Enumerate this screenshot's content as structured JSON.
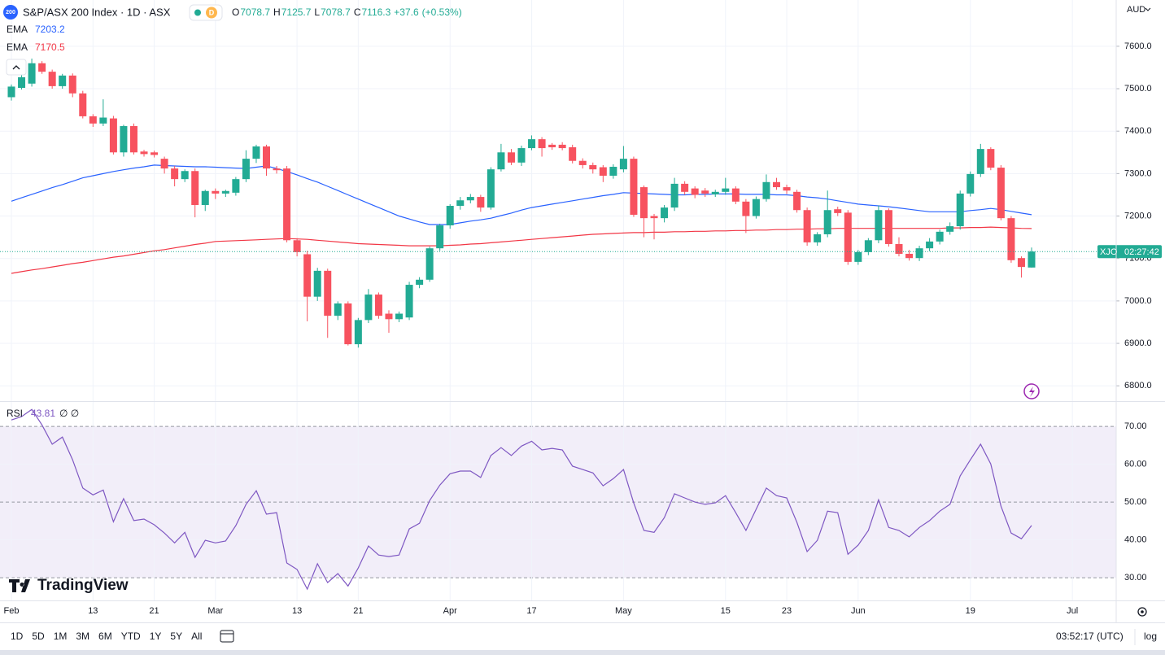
{
  "header": {
    "badge": "200",
    "interval_badge": "D",
    "ohlc_labels": [
      "O",
      "H",
      "L",
      "C"
    ],
    "change": "+37.6",
    "change_pct": "(+0.53%)",
    "currency": "AUD",
    "symbol": "XJO",
    "countdown": "02:27:42",
    "logo": "TradingView"
  },
  "toolbar": {
    "ranges": [
      "1D",
      "5D",
      "1M",
      "3M",
      "6M",
      "YTD",
      "1Y",
      "5Y",
      "All"
    ],
    "time": "03:52:17 (UTC)",
    "log": "log"
  },
  "chart_data": {
    "type": "candlestick",
    "title": "S&P/ASX 200 Index · 1D · ASX",
    "up_color": "#22ab94",
    "down_color": "#f7525f",
    "grid": true,
    "categories": [
      "Feb",
      null,
      null,
      null,
      null,
      null,
      null,
      null,
      "13",
      null,
      null,
      null,
      null,
      null,
      "21",
      null,
      null,
      null,
      null,
      null,
      "Mar",
      null,
      null,
      null,
      null,
      null,
      null,
      null,
      "13",
      null,
      null,
      null,
      null,
      null,
      "21",
      null,
      null,
      null,
      null,
      null,
      null,
      null,
      null,
      "Apr",
      null,
      null,
      null,
      null,
      null,
      null,
      null,
      "17",
      null,
      null,
      null,
      null,
      null,
      null,
      null,
      null,
      "May",
      null,
      null,
      null,
      null,
      null,
      null,
      null,
      null,
      null,
      "15",
      null,
      null,
      null,
      null,
      null,
      "23",
      null,
      null,
      null,
      null,
      null,
      null,
      "Jun",
      null,
      null,
      null,
      null,
      null,
      null,
      null,
      null,
      null,
      null,
      "19",
      null,
      null,
      null,
      null,
      null,
      null,
      null,
      null,
      null,
      "Jul"
    ],
    "open": [
      7480,
      7502,
      7512,
      7560,
      7540,
      7506,
      7531,
      7489,
      7435,
      7418,
      7430,
      7350,
      7412,
      7352,
      7350,
      7335,
      7312,
      7287,
      7306,
      7226,
      7259,
      7253,
      7255,
      7287,
      7335,
      7364,
      7312,
      7312,
      7143,
      7110,
      7010,
      7071,
      6965,
      6994,
      6898,
      6955,
      7015,
      6970,
      6957,
      6961,
      7038,
      7050,
      7124,
      7178,
      7224,
      7237,
      7245,
      7220,
      7310,
      7350,
      7326,
      7360,
      7381,
      7368,
      7368,
      7362,
      7330,
      7320,
      7315,
      7295,
      7310,
      7335,
      7268,
      7200,
      7195,
      7220,
      7276,
      7265,
      7260,
      7251,
      7257,
      7265,
      7234,
      7200,
      7240,
      7280,
      7268,
      7257,
      7214,
      7138,
      7157,
      7216,
      7208,
      7092,
      7115,
      7143,
      7214,
      7134,
      7111,
      7101,
      7124,
      7140,
      7163,
      7176,
      7253,
      7299,
      7358,
      7314,
      7195,
      7101,
      7078.7,
      null,
      null,
      null,
      null
    ],
    "high": [
      7510,
      7535,
      7571,
      7565,
      7545,
      7535,
      7536,
      7495,
      7440,
      7475,
      7436,
      7415,
      7418,
      7356,
      7354,
      7340,
      7318,
      7310,
      7312,
      7262,
      7265,
      7262,
      7292,
      7355,
      7368,
      7368,
      7318,
      7318,
      7148,
      7118,
      7078,
      7076,
      6999,
      6999,
      6960,
      7028,
      7020,
      6978,
      6975,
      7045,
      7056,
      7128,
      7182,
      7228,
      7245,
      7252,
      7250,
      7315,
      7370,
      7358,
      7366,
      7390,
      7386,
      7372,
      7374,
      7368,
      7336,
      7326,
      7320,
      7322,
      7365,
      7340,
      7272,
      7205,
      7226,
      7290,
      7282,
      7270,
      7266,
      7262,
      7290,
      7270,
      7240,
      7246,
      7298,
      7290,
      7274,
      7262,
      7220,
      7162,
      7260,
      7222,
      7214,
      7120,
      7148,
      7225,
      7218,
      7150,
      7120,
      7130,
      7148,
      7168,
      7185,
      7260,
      7305,
      7370,
      7362,
      7320,
      7200,
      7105,
      7125.7,
      null,
      null,
      null,
      null
    ],
    "low": [
      7472,
      7498,
      7505,
      7535,
      7500,
      7500,
      7480,
      7430,
      7410,
      7412,
      7345,
      7340,
      7345,
      7340,
      7338,
      7300,
      7270,
      7280,
      7197,
      7212,
      7240,
      7245,
      7248,
      7280,
      7325,
      7295,
      7300,
      7138,
      7105,
      6952,
      7000,
      6913,
      6955,
      6895,
      6890,
      6948,
      6958,
      6925,
      6950,
      6955,
      7030,
      7045,
      7118,
      7170,
      7215,
      7230,
      7210,
      7215,
      7305,
      7320,
      7318,
      7355,
      7340,
      7356,
      7355,
      7324,
      7312,
      7300,
      7280,
      7288,
      7303,
      7198,
      7150,
      7145,
      7185,
      7212,
      7250,
      7242,
      7245,
      7245,
      7250,
      7228,
      7160,
      7194,
      7234,
      7262,
      7252,
      7208,
      7130,
      7130,
      7150,
      7200,
      7085,
      7085,
      7108,
      7136,
      7128,
      7105,
      7095,
      7094,
      7117,
      7133,
      7156,
      7168,
      7246,
      7292,
      7308,
      7190,
      7090,
      7055,
      7078.7,
      null,
      null,
      null,
      null
    ],
    "close": [
      7505,
      7527,
      7560,
      7540,
      7506,
      7531,
      7489,
      7435,
      7418,
      7432,
      7350,
      7412,
      7350,
      7346,
      7344,
      7312,
      7287,
      7306,
      7226,
      7259,
      7253,
      7259,
      7287,
      7335,
      7364,
      7312,
      7308,
      7143,
      7115,
      7010,
      7071,
      6965,
      6994,
      6898,
      6955,
      7015,
      6965,
      6957,
      6970,
      7038,
      7050,
      7124,
      7178,
      7224,
      7237,
      7245,
      7220,
      7310,
      7350,
      7326,
      7360,
      7381,
      7360,
      7362,
      7360,
      7330,
      7320,
      7310,
      7295,
      7316,
      7335,
      7203,
      7195,
      7195,
      7220,
      7276,
      7257,
      7250,
      7253,
      7257,
      7265,
      7234,
      7200,
      7240,
      7280,
      7268,
      7260,
      7214,
      7138,
      7157,
      7214,
      7207,
      7092,
      7115,
      7143,
      7214,
      7134,
      7111,
      7101,
      7124,
      7140,
      7163,
      7176,
      7253,
      7299,
      7358,
      7314,
      7195,
      7096,
      7080,
      7116.3,
      null,
      null,
      null,
      null
    ],
    "series": [
      {
        "name": "EMA",
        "color": "#2962ff",
        "values": [
          7235,
          7243,
          7251,
          7259,
          7267,
          7274,
          7282,
          7290,
          7295,
          7300,
          7305,
          7309,
          7313,
          7316,
          7320,
          7319,
          7318,
          7317,
          7316,
          7316,
          7315,
          7314,
          7313,
          7312,
          7315,
          7318,
          7312,
          7305,
          7297,
          7288,
          7280,
          7270,
          7260,
          7250,
          7240,
          7230,
          7220,
          7210,
          7200,
          7193,
          7186,
          7180,
          7180,
          7180,
          7184,
          7188,
          7191,
          7195,
          7201,
          7207,
          7214,
          7220,
          7224,
          7228,
          7232,
          7236,
          7240,
          7244,
          7248,
          7251,
          7255,
          7254,
          7253,
          7252,
          7251,
          7250,
          7250,
          7251,
          7251,
          7252,
          7252,
          7252,
          7251,
          7251,
          7251,
          7250,
          7250,
          7248,
          7245,
          7243,
          7240,
          7236,
          7232,
          7228,
          7226,
          7224,
          7222,
          7219,
          7216,
          7213,
          7210,
          7210,
          7210,
          7210,
          7213,
          7215,
          7218,
          7215,
          7211,
          7207,
          7203.2,
          null,
          null,
          null,
          null
        ]
      },
      {
        "name": "EMA",
        "color": "#f23645",
        "values": [
          7065,
          7069,
          7073,
          7076,
          7080,
          7084,
          7088,
          7091,
          7095,
          7099,
          7103,
          7106,
          7110,
          7114,
          7118,
          7121,
          7125,
          7129,
          7133,
          7136,
          7140,
          7141,
          7142,
          7143,
          7144,
          7145,
          7146,
          7147,
          7146,
          7145,
          7143,
          7141,
          7139,
          7137,
          7135,
          7134,
          7133,
          7132,
          7131,
          7130,
          7130,
          7130,
          7130,
          7131,
          7132,
          7134,
          7135,
          7137,
          7139,
          7141,
          7143,
          7145,
          7147,
          7149,
          7151,
          7153,
          7155,
          7157,
          7158,
          7159,
          7160,
          7161,
          7161,
          7162,
          7162,
          7163,
          7163,
          7164,
          7164,
          7165,
          7165,
          7166,
          7166,
          7167,
          7167,
          7168,
          7168,
          7169,
          7169,
          7170,
          7170,
          7171,
          7171,
          7171,
          7171,
          7171,
          7171,
          7171,
          7171,
          7171,
          7171,
          7171,
          7172,
          7172,
          7173,
          7173,
          7174,
          7173,
          7172,
          7171,
          7170.5,
          null,
          null,
          null,
          null
        ]
      }
    ],
    "ylim": [
      6764,
      7709
    ],
    "yticks": [
      {
        "value": 6800,
        "label": "6800.0"
      },
      {
        "value": 6900,
        "label": "6900.0"
      },
      {
        "value": 7000,
        "label": "7000.0"
      },
      {
        "value": 7100,
        "label": "7100.0"
      },
      {
        "value": 7200,
        "label": "7200.0"
      },
      {
        "value": 7300,
        "label": "7300.0"
      },
      {
        "value": 7400,
        "label": "7400.0"
      },
      {
        "value": 7500,
        "label": "7500.0"
      },
      {
        "value": 7600,
        "label": "7600.0"
      }
    ],
    "rsi": {
      "name": "RSI",
      "extra": "∅ ∅",
      "color": "#7e57c2",
      "band": [
        30,
        70
      ],
      "midline": 50,
      "values": [
        71.7,
        72.6,
        74.5,
        70.4,
        65.3,
        67.2,
        61.2,
        53.7,
        51.9,
        53.2,
        44.8,
        50.9,
        45.1,
        45.5,
        44.0,
        41.8,
        39.2,
        42.0,
        35.4,
        39.9,
        39.2,
        39.7,
        43.8,
        49.4,
        53.0,
        46.8,
        47.2,
        33.9,
        32.2,
        27.0,
        33.7,
        28.7,
        31.1,
        27.8,
        32.6,
        38.4,
        36.0,
        35.6,
        36.0,
        42.9,
        44.4,
        50.4,
        54.5,
        57.5,
        58.2,
        58.2,
        56.5,
        62.3,
        64.4,
        62.3,
        64.8,
        66.1,
        63.8,
        64.2,
        63.8,
        59.5,
        58.6,
        57.7,
        54.3,
        56.2,
        58.6,
        49.8,
        42.5,
        42.0,
        45.9,
        52.2,
        51.1,
        50.0,
        49.4,
        49.8,
        51.7,
        47.2,
        42.5,
        48.1,
        53.7,
        51.7,
        51.1,
        44.6,
        36.9,
        39.9,
        47.6,
        47.2,
        36.2,
        38.6,
        42.5,
        50.6,
        43.3,
        42.5,
        40.8,
        43.3,
        45.1,
        47.6,
        49.4,
        56.9,
        61.2,
        65.3,
        60.1,
        48.9,
        41.8,
        40.3,
        43.81,
        null,
        null,
        null,
        null
      ],
      "ylim": [
        24,
        76.7
      ],
      "yticks": [
        {
          "value": 30,
          "label": "30.00"
        },
        {
          "value": 40,
          "label": "40.00"
        },
        {
          "value": 50,
          "label": "50.00"
        },
        {
          "value": 60,
          "label": "60.00"
        },
        {
          "value": 70,
          "label": "70.00"
        }
      ]
    }
  }
}
